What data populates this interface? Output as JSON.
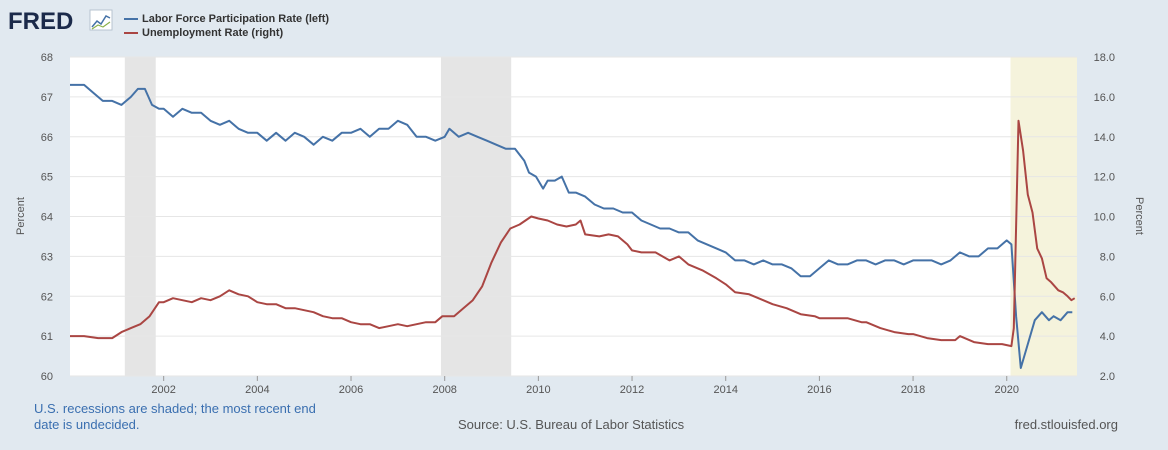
{
  "brand": {
    "logo_text": "FRED"
  },
  "footer": {
    "note": "U.S. recessions are shaded; the most recent end date is undecided.",
    "source": "Source: U.S. Bureau of Labor Statistics",
    "site": "fred.stlouisfed.org"
  },
  "colors": {
    "lfpr": "#4572a7",
    "unrate": "#aa4643",
    "recession": "#e5e5e5",
    "recent_recession": "#f5f3dc"
  },
  "chart_data": {
    "type": "line",
    "x_axis": {
      "min": 2000.0,
      "max": 2021.5,
      "ticks": [
        "2002",
        "2004",
        "2006",
        "2008",
        "2010",
        "2012",
        "2014",
        "2016",
        "2018",
        "2020"
      ]
    },
    "y_left": {
      "label": "Percent",
      "min": 60,
      "max": 68,
      "ticks": [
        "60",
        "61",
        "62",
        "63",
        "64",
        "65",
        "66",
        "67",
        "68"
      ]
    },
    "y_right": {
      "label": "Percent",
      "min": 2.0,
      "max": 18.0,
      "ticks": [
        "2.0",
        "4.0",
        "6.0",
        "8.0",
        "10.0",
        "12.0",
        "14.0",
        "16.0",
        "18.0"
      ]
    },
    "grid": true,
    "legend_position": "top-left",
    "recessions": [
      {
        "start": 2001.17,
        "end": 2001.83,
        "undecided": false
      },
      {
        "start": 2007.92,
        "end": 2009.42,
        "undecided": false
      },
      {
        "start": 2020.08,
        "end": 2021.5,
        "undecided": true
      }
    ],
    "series": [
      {
        "name": "Labor Force Participation Rate (left)",
        "axis": "left",
        "points": [
          [
            2000.0,
            67.3
          ],
          [
            2000.3,
            67.3
          ],
          [
            2000.5,
            67.1
          ],
          [
            2000.7,
            66.9
          ],
          [
            2000.9,
            66.9
          ],
          [
            2001.1,
            66.8
          ],
          [
            2001.3,
            67.0
          ],
          [
            2001.45,
            67.2
          ],
          [
            2001.6,
            67.2
          ],
          [
            2001.75,
            66.8
          ],
          [
            2001.9,
            66.7
          ],
          [
            2002.0,
            66.7
          ],
          [
            2002.2,
            66.5
          ],
          [
            2002.4,
            66.7
          ],
          [
            2002.6,
            66.6
          ],
          [
            2002.8,
            66.6
          ],
          [
            2003.0,
            66.4
          ],
          [
            2003.2,
            66.3
          ],
          [
            2003.4,
            66.4
          ],
          [
            2003.6,
            66.2
          ],
          [
            2003.8,
            66.1
          ],
          [
            2004.0,
            66.1
          ],
          [
            2004.2,
            65.9
          ],
          [
            2004.4,
            66.1
          ],
          [
            2004.6,
            65.9
          ],
          [
            2004.8,
            66.1
          ],
          [
            2005.0,
            66.0
          ],
          [
            2005.2,
            65.8
          ],
          [
            2005.4,
            66.0
          ],
          [
            2005.6,
            65.9
          ],
          [
            2005.8,
            66.1
          ],
          [
            2006.0,
            66.1
          ],
          [
            2006.2,
            66.2
          ],
          [
            2006.4,
            66.0
          ],
          [
            2006.6,
            66.2
          ],
          [
            2006.8,
            66.2
          ],
          [
            2007.0,
            66.4
          ],
          [
            2007.2,
            66.3
          ],
          [
            2007.4,
            66.0
          ],
          [
            2007.6,
            66.0
          ],
          [
            2007.8,
            65.9
          ],
          [
            2008.0,
            66.0
          ],
          [
            2008.1,
            66.2
          ],
          [
            2008.3,
            66.0
          ],
          [
            2008.5,
            66.1
          ],
          [
            2008.7,
            66.0
          ],
          [
            2008.9,
            65.9
          ],
          [
            2009.1,
            65.8
          ],
          [
            2009.3,
            65.7
          ],
          [
            2009.5,
            65.7
          ],
          [
            2009.7,
            65.4
          ],
          [
            2009.8,
            65.1
          ],
          [
            2009.95,
            65.0
          ],
          [
            2010.1,
            64.7
          ],
          [
            2010.2,
            64.9
          ],
          [
            2010.35,
            64.9
          ],
          [
            2010.5,
            65.0
          ],
          [
            2010.65,
            64.6
          ],
          [
            2010.8,
            64.6
          ],
          [
            2011.0,
            64.5
          ],
          [
            2011.2,
            64.3
          ],
          [
            2011.4,
            64.2
          ],
          [
            2011.6,
            64.2
          ],
          [
            2011.8,
            64.1
          ],
          [
            2012.0,
            64.1
          ],
          [
            2012.2,
            63.9
          ],
          [
            2012.4,
            63.8
          ],
          [
            2012.6,
            63.7
          ],
          [
            2012.8,
            63.7
          ],
          [
            2013.0,
            63.6
          ],
          [
            2013.2,
            63.6
          ],
          [
            2013.4,
            63.4
          ],
          [
            2013.6,
            63.3
          ],
          [
            2013.8,
            63.2
          ],
          [
            2014.0,
            63.1
          ],
          [
            2014.2,
            62.9
          ],
          [
            2014.4,
            62.9
          ],
          [
            2014.6,
            62.8
          ],
          [
            2014.8,
            62.9
          ],
          [
            2015.0,
            62.8
          ],
          [
            2015.2,
            62.8
          ],
          [
            2015.4,
            62.7
          ],
          [
            2015.6,
            62.5
          ],
          [
            2015.8,
            62.5
          ],
          [
            2016.0,
            62.7
          ],
          [
            2016.2,
            62.9
          ],
          [
            2016.4,
            62.8
          ],
          [
            2016.6,
            62.8
          ],
          [
            2016.8,
            62.9
          ],
          [
            2017.0,
            62.9
          ],
          [
            2017.2,
            62.8
          ],
          [
            2017.4,
            62.9
          ],
          [
            2017.6,
            62.9
          ],
          [
            2017.8,
            62.8
          ],
          [
            2018.0,
            62.9
          ],
          [
            2018.2,
            62.9
          ],
          [
            2018.4,
            62.9
          ],
          [
            2018.6,
            62.8
          ],
          [
            2018.8,
            62.9
          ],
          [
            2019.0,
            63.1
          ],
          [
            2019.2,
            63.0
          ],
          [
            2019.4,
            63.0
          ],
          [
            2019.6,
            63.2
          ],
          [
            2019.8,
            63.2
          ],
          [
            2020.0,
            63.4
          ],
          [
            2020.1,
            63.3
          ],
          [
            2020.2,
            61.5
          ],
          [
            2020.3,
            60.2
          ],
          [
            2020.45,
            60.8
          ],
          [
            2020.6,
            61.4
          ],
          [
            2020.75,
            61.6
          ],
          [
            2020.9,
            61.4
          ],
          [
            2021.0,
            61.5
          ],
          [
            2021.15,
            61.4
          ],
          [
            2021.3,
            61.6
          ],
          [
            2021.4,
            61.6
          ]
        ]
      },
      {
        "name": "Unemployment Rate (right)",
        "axis": "right",
        "points": [
          [
            2000.0,
            4.0
          ],
          [
            2000.3,
            4.0
          ],
          [
            2000.6,
            3.9
          ],
          [
            2000.9,
            3.9
          ],
          [
            2001.1,
            4.2
          ],
          [
            2001.3,
            4.4
          ],
          [
            2001.5,
            4.6
          ],
          [
            2001.7,
            5.0
          ],
          [
            2001.9,
            5.7
          ],
          [
            2002.0,
            5.7
          ],
          [
            2002.2,
            5.9
          ],
          [
            2002.4,
            5.8
          ],
          [
            2002.6,
            5.7
          ],
          [
            2002.8,
            5.9
          ],
          [
            2003.0,
            5.8
          ],
          [
            2003.2,
            6.0
          ],
          [
            2003.4,
            6.3
          ],
          [
            2003.6,
            6.1
          ],
          [
            2003.8,
            6.0
          ],
          [
            2004.0,
            5.7
          ],
          [
            2004.2,
            5.6
          ],
          [
            2004.4,
            5.6
          ],
          [
            2004.6,
            5.4
          ],
          [
            2004.8,
            5.4
          ],
          [
            2005.0,
            5.3
          ],
          [
            2005.2,
            5.2
          ],
          [
            2005.4,
            5.0
          ],
          [
            2005.6,
            4.9
          ],
          [
            2005.8,
            4.9
          ],
          [
            2006.0,
            4.7
          ],
          [
            2006.2,
            4.6
          ],
          [
            2006.4,
            4.6
          ],
          [
            2006.6,
            4.4
          ],
          [
            2006.8,
            4.5
          ],
          [
            2007.0,
            4.6
          ],
          [
            2007.2,
            4.5
          ],
          [
            2007.4,
            4.6
          ],
          [
            2007.6,
            4.7
          ],
          [
            2007.8,
            4.7
          ],
          [
            2007.95,
            5.0
          ],
          [
            2008.2,
            5.0
          ],
          [
            2008.4,
            5.4
          ],
          [
            2008.6,
            5.8
          ],
          [
            2008.8,
            6.5
          ],
          [
            2009.0,
            7.7
          ],
          [
            2009.2,
            8.7
          ],
          [
            2009.4,
            9.4
          ],
          [
            2009.6,
            9.6
          ],
          [
            2009.85,
            10.0
          ],
          [
            2010.0,
            9.9
          ],
          [
            2010.2,
            9.8
          ],
          [
            2010.4,
            9.6
          ],
          [
            2010.6,
            9.5
          ],
          [
            2010.8,
            9.6
          ],
          [
            2010.9,
            9.8
          ],
          [
            2011.0,
            9.1
          ],
          [
            2011.3,
            9.0
          ],
          [
            2011.5,
            9.1
          ],
          [
            2011.7,
            9.0
          ],
          [
            2011.9,
            8.6
          ],
          [
            2012.0,
            8.3
          ],
          [
            2012.2,
            8.2
          ],
          [
            2012.5,
            8.2
          ],
          [
            2012.8,
            7.8
          ],
          [
            2013.0,
            8.0
          ],
          [
            2013.2,
            7.6
          ],
          [
            2013.5,
            7.3
          ],
          [
            2013.8,
            6.9
          ],
          [
            2014.0,
            6.6
          ],
          [
            2014.2,
            6.2
          ],
          [
            2014.5,
            6.1
          ],
          [
            2014.8,
            5.8
          ],
          [
            2015.0,
            5.6
          ],
          [
            2015.3,
            5.4
          ],
          [
            2015.6,
            5.1
          ],
          [
            2015.9,
            5.0
          ],
          [
            2016.0,
            4.9
          ],
          [
            2016.3,
            4.9
          ],
          [
            2016.6,
            4.9
          ],
          [
            2016.9,
            4.7
          ],
          [
            2017.0,
            4.7
          ],
          [
            2017.3,
            4.4
          ],
          [
            2017.6,
            4.2
          ],
          [
            2017.9,
            4.1
          ],
          [
            2018.0,
            4.1
          ],
          [
            2018.3,
            3.9
          ],
          [
            2018.6,
            3.8
          ],
          [
            2018.9,
            3.8
          ],
          [
            2019.0,
            4.0
          ],
          [
            2019.3,
            3.7
          ],
          [
            2019.6,
            3.6
          ],
          [
            2019.9,
            3.6
          ],
          [
            2020.1,
            3.5
          ],
          [
            2020.15,
            4.4
          ],
          [
            2020.25,
            14.8
          ],
          [
            2020.35,
            13.3
          ],
          [
            2020.45,
            11.1
          ],
          [
            2020.55,
            10.2
          ],
          [
            2020.65,
            8.4
          ],
          [
            2020.75,
            7.9
          ],
          [
            2020.85,
            6.9
          ],
          [
            2020.95,
            6.7
          ],
          [
            2021.1,
            6.3
          ],
          [
            2021.2,
            6.2
          ],
          [
            2021.3,
            6.0
          ],
          [
            2021.38,
            5.8
          ],
          [
            2021.45,
            5.9
          ]
        ]
      }
    ]
  }
}
